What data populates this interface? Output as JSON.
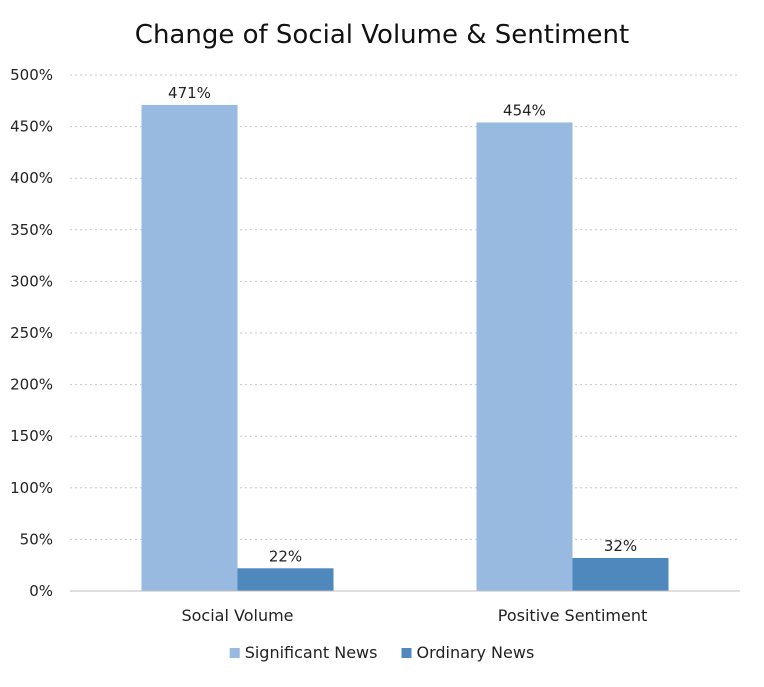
{
  "chart_data": {
    "type": "bar",
    "title": "Change of Social Volume & Sentiment",
    "xlabel": "",
    "ylabel": "",
    "categories": [
      "Social Volume",
      "Positive Sentiment"
    ],
    "series": [
      {
        "name": "Significant News",
        "color": "#98B9E0",
        "values": [
          471,
          454
        ],
        "labels": [
          "471%",
          "454%"
        ]
      },
      {
        "name": "Ordinary News",
        "color": "#4F88BD",
        "values": [
          22,
          32
        ],
        "labels": [
          "22%",
          "32%"
        ]
      }
    ],
    "ylim": [
      0,
      500
    ],
    "yticks": [
      0,
      50,
      100,
      150,
      200,
      250,
      300,
      350,
      400,
      450,
      500
    ],
    "ytick_labels": [
      "0%",
      "50%",
      "100%",
      "150%",
      "200%",
      "250%",
      "300%",
      "350%",
      "400%",
      "450%",
      "500%"
    ],
    "grid": true,
    "legend_position": "bottom"
  }
}
